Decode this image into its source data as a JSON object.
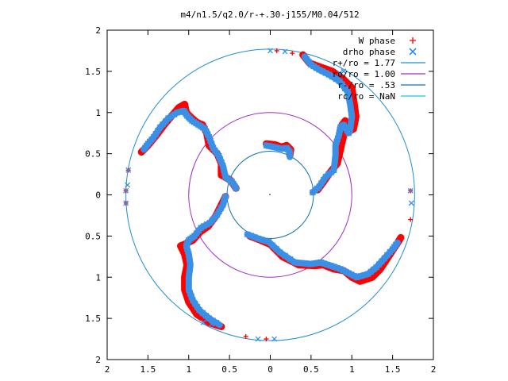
{
  "chart_data": {
    "type": "scatter",
    "title": "m4/n1.5/q2.0/r-+.30-j155/M0.04/512",
    "xlabel": "",
    "ylabel": "",
    "xlim": [
      -2,
      2
    ],
    "ylim": [
      -2,
      2
    ],
    "x_ticks": [
      "2",
      "1.5",
      "1",
      "0.5",
      "0",
      "0.5",
      "1",
      "1.5",
      "2"
    ],
    "y_ticks": [
      "2",
      "1.5",
      "1",
      "0.5",
      "0",
      "0.5",
      "1",
      "1.5",
      "2"
    ],
    "grid": false,
    "legend_position": "top-right",
    "legend": [
      {
        "label": "W phase",
        "marker": "+",
        "color": "#ff0000"
      },
      {
        "label": "drho phase",
        "marker": "x",
        "color": "#0080ff"
      },
      {
        "label": "r+/ro = 1.77",
        "line": true,
        "color": "#1f8fd0"
      },
      {
        "label": "ro/ro = 1.00",
        "line": true,
        "color": "#a030c0"
      },
      {
        "label": "r-/ro = .53",
        "line": true,
        "color": "#1070b0"
      },
      {
        "label": "rc/ro = NaN",
        "line": true,
        "color": "#20c0e0"
      }
    ],
    "circles": [
      {
        "name": "r+/ro = 1.77",
        "radius": 1.77,
        "color": "#1f8fd0"
      },
      {
        "name": "ro/ro = 1.00",
        "radius": 1.0,
        "color": "#a030c0"
      },
      {
        "name": "r-/ro = .53",
        "radius": 0.53,
        "color": "#1070b0"
      }
    ],
    "series": [
      {
        "name": "W phase",
        "color": "#ff0000",
        "marker": "+",
        "arms": [
          [
            [
              -0.05,
              0.62
            ],
            [
              0.05,
              0.61
            ],
            [
              0.14,
              0.58
            ],
            [
              0.2,
              0.6
            ],
            [
              0.25,
              0.55
            ],
            [
              0.24,
              0.48
            ]
          ],
          [
            [
              0.58,
              0.06
            ],
            [
              0.64,
              0.14
            ],
            [
              0.74,
              0.28
            ],
            [
              0.82,
              0.38
            ],
            [
              0.86,
              0.55
            ],
            [
              0.88,
              0.64
            ],
            [
              0.9,
              0.72
            ],
            [
              0.88,
              0.85
            ],
            [
              0.92,
              0.9
            ],
            [
              0.98,
              0.78
            ],
            [
              1.02,
              0.8
            ],
            [
              1.05,
              0.95
            ],
            [
              1.03,
              1.1
            ],
            [
              1.0,
              1.3
            ],
            [
              0.88,
              1.42
            ],
            [
              0.76,
              1.5
            ],
            [
              0.62,
              1.55
            ],
            [
              0.48,
              1.6
            ],
            [
              0.4,
              1.7
            ]
          ],
          [
            [
              -0.42,
              0.08
            ],
            [
              -0.49,
              0.18
            ],
            [
              -0.6,
              0.24
            ],
            [
              -0.6,
              0.38
            ],
            [
              -0.65,
              0.5
            ],
            [
              -0.75,
              0.6
            ],
            [
              -0.78,
              0.75
            ],
            [
              -0.83,
              0.85
            ],
            [
              -0.9,
              0.88
            ],
            [
              -0.97,
              0.94
            ],
            [
              -1.03,
              1.0
            ],
            [
              -1.05,
              1.1
            ],
            [
              -1.12,
              1.06
            ],
            [
              -1.2,
              0.97
            ],
            [
              -1.3,
              0.85
            ],
            [
              -1.4,
              0.72
            ],
            [
              -1.5,
              0.6
            ],
            [
              -1.58,
              0.52
            ]
          ],
          [
            [
              -0.55,
              -0.02
            ],
            [
              -0.6,
              -0.12
            ],
            [
              -0.67,
              -0.26
            ],
            [
              -0.76,
              -0.38
            ],
            [
              -0.86,
              -0.45
            ],
            [
              -0.95,
              -0.55
            ],
            [
              -1.05,
              -0.6
            ],
            [
              -1.1,
              -0.62
            ],
            [
              -1.05,
              -0.72
            ],
            [
              -1.02,
              -0.85
            ],
            [
              -1.05,
              -1.0
            ],
            [
              -1.05,
              -1.15
            ],
            [
              -1.0,
              -1.3
            ],
            [
              -0.9,
              -1.45
            ],
            [
              -0.75,
              -1.55
            ],
            [
              -0.6,
              -1.6
            ]
          ],
          [
            [
              -0.25,
              -0.5
            ],
            [
              -0.12,
              -0.55
            ],
            [
              0.0,
              -0.6
            ],
            [
              0.15,
              -0.75
            ],
            [
              0.35,
              -0.85
            ],
            [
              0.55,
              -0.86
            ],
            [
              0.65,
              -0.85
            ],
            [
              0.78,
              -0.9
            ],
            [
              0.9,
              -0.92
            ],
            [
              1.0,
              -1.0
            ],
            [
              1.1,
              -1.05
            ],
            [
              1.25,
              -1.0
            ],
            [
              1.35,
              -0.9
            ],
            [
              1.45,
              -0.75
            ],
            [
              1.55,
              -0.6
            ],
            [
              1.6,
              -0.52
            ]
          ]
        ],
        "scatter": [
          [
            -1.74,
            0.3
          ],
          [
            -1.77,
            0.05
          ],
          [
            -1.77,
            -0.1
          ],
          [
            0.08,
            1.75
          ],
          [
            0.27,
            1.72
          ],
          [
            -0.3,
            -1.72
          ],
          [
            -0.05,
            -1.75
          ],
          [
            1.72,
            0.05
          ],
          [
            1.72,
            -0.3
          ]
        ]
      },
      {
        "name": "drho phase",
        "color": "#3a8fe6",
        "marker": "x",
        "arms": [
          [
            [
              -0.05,
              0.6
            ],
            [
              0.05,
              0.58
            ],
            [
              0.14,
              0.56
            ],
            [
              0.2,
              0.57
            ],
            [
              0.24,
              0.52
            ],
            [
              0.24,
              0.46
            ]
          ],
          [
            [
              0.52,
              0.03
            ],
            [
              0.6,
              0.1
            ],
            [
              0.68,
              0.22
            ],
            [
              0.78,
              0.3
            ],
            [
              0.8,
              0.48
            ],
            [
              0.8,
              0.6
            ],
            [
              0.84,
              0.72
            ],
            [
              0.86,
              0.82
            ],
            [
              0.9,
              0.85
            ],
            [
              0.96,
              0.75
            ],
            [
              0.98,
              0.8
            ],
            [
              1.0,
              0.95
            ],
            [
              0.98,
              1.1
            ],
            [
              0.95,
              1.25
            ],
            [
              0.85,
              1.38
            ],
            [
              0.72,
              1.46
            ],
            [
              0.6,
              1.52
            ],
            [
              0.5,
              1.58
            ],
            [
              0.42,
              1.68
            ]
          ],
          [
            [
              -0.42,
              0.08
            ],
            [
              -0.47,
              0.16
            ],
            [
              -0.55,
              0.22
            ],
            [
              -0.58,
              0.35
            ],
            [
              -0.63,
              0.47
            ],
            [
              -0.7,
              0.57
            ],
            [
              -0.75,
              0.7
            ],
            [
              -0.8,
              0.8
            ],
            [
              -0.88,
              0.85
            ],
            [
              -0.96,
              0.9
            ],
            [
              -1.02,
              0.96
            ],
            [
              -1.06,
              1.02
            ],
            [
              -1.14,
              1.0
            ],
            [
              -1.25,
              0.93
            ],
            [
              -1.35,
              0.82
            ],
            [
              -1.43,
              0.7
            ],
            [
              -1.5,
              0.62
            ],
            [
              -1.55,
              0.55
            ]
          ],
          [
            [
              -0.55,
              -0.02
            ],
            [
              -0.58,
              -0.12
            ],
            [
              -0.65,
              -0.24
            ],
            [
              -0.74,
              -0.34
            ],
            [
              -0.85,
              -0.4
            ],
            [
              -0.93,
              -0.5
            ],
            [
              -1.0,
              -0.55
            ],
            [
              -1.03,
              -0.62
            ],
            [
              -1.0,
              -0.72
            ],
            [
              -0.98,
              -0.85
            ],
            [
              -1.0,
              -1.0
            ],
            [
              -1.0,
              -1.15
            ],
            [
              -0.95,
              -1.28
            ],
            [
              -0.87,
              -1.4
            ],
            [
              -0.75,
              -1.5
            ],
            [
              -0.62,
              -1.58
            ]
          ],
          [
            [
              -0.28,
              -0.48
            ],
            [
              -0.15,
              -0.53
            ],
            [
              -0.02,
              -0.57
            ],
            [
              0.12,
              -0.7
            ],
            [
              0.3,
              -0.82
            ],
            [
              0.5,
              -0.84
            ],
            [
              0.62,
              -0.82
            ],
            [
              0.74,
              -0.86
            ],
            [
              0.86,
              -0.9
            ],
            [
              0.96,
              -0.95
            ],
            [
              1.06,
              -1.0
            ],
            [
              1.2,
              -0.96
            ],
            [
              1.3,
              -0.88
            ],
            [
              1.4,
              -0.77
            ],
            [
              1.5,
              -0.66
            ],
            [
              1.56,
              -0.58
            ]
          ]
        ],
        "scatter": [
          [
            -1.74,
            0.3
          ],
          [
            -1.77,
            0.05
          ],
          [
            -1.77,
            -0.1
          ],
          [
            -1.75,
            0.12
          ],
          [
            0.0,
            1.75
          ],
          [
            0.18,
            1.74
          ],
          [
            0.9,
            1.5
          ],
          [
            0.85,
            1.48
          ],
          [
            -0.15,
            -1.75
          ],
          [
            0.05,
            -1.75
          ],
          [
            -0.82,
            -1.55
          ],
          [
            -0.72,
            -1.57
          ],
          [
            1.72,
            0.05
          ],
          [
            1.73,
            -0.1
          ]
        ]
      }
    ]
  }
}
